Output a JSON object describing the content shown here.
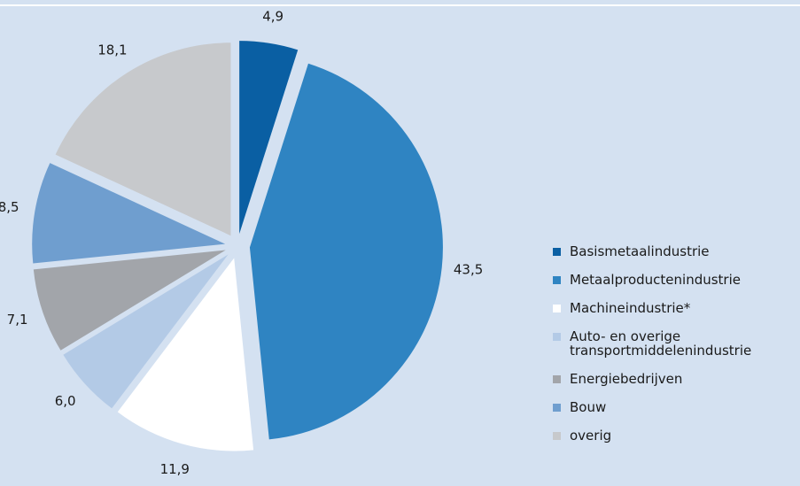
{
  "chart_data": {
    "type": "pie",
    "categories": [
      "Basismetaalindustrie",
      "Metaalproductenindustrie",
      "Machineindustrie*",
      "Auto- en overige transportmiddelenindustrie",
      "Energiebedrijven",
      "Bouw",
      "overig"
    ],
    "values": [
      4.9,
      43.5,
      11.9,
      6.0,
      7.1,
      8.5,
      18.1
    ],
    "value_labels": [
      "4,9",
      "43,5",
      "11,9",
      "6,0",
      "7,1",
      "8,5",
      "18,1"
    ],
    "colors": [
      "#0a5fa3",
      "#2f84c2",
      "#ffffff",
      "#b3cae6",
      "#a2a5aa",
      "#6f9ecf",
      "#c7c9cc"
    ]
  }
}
